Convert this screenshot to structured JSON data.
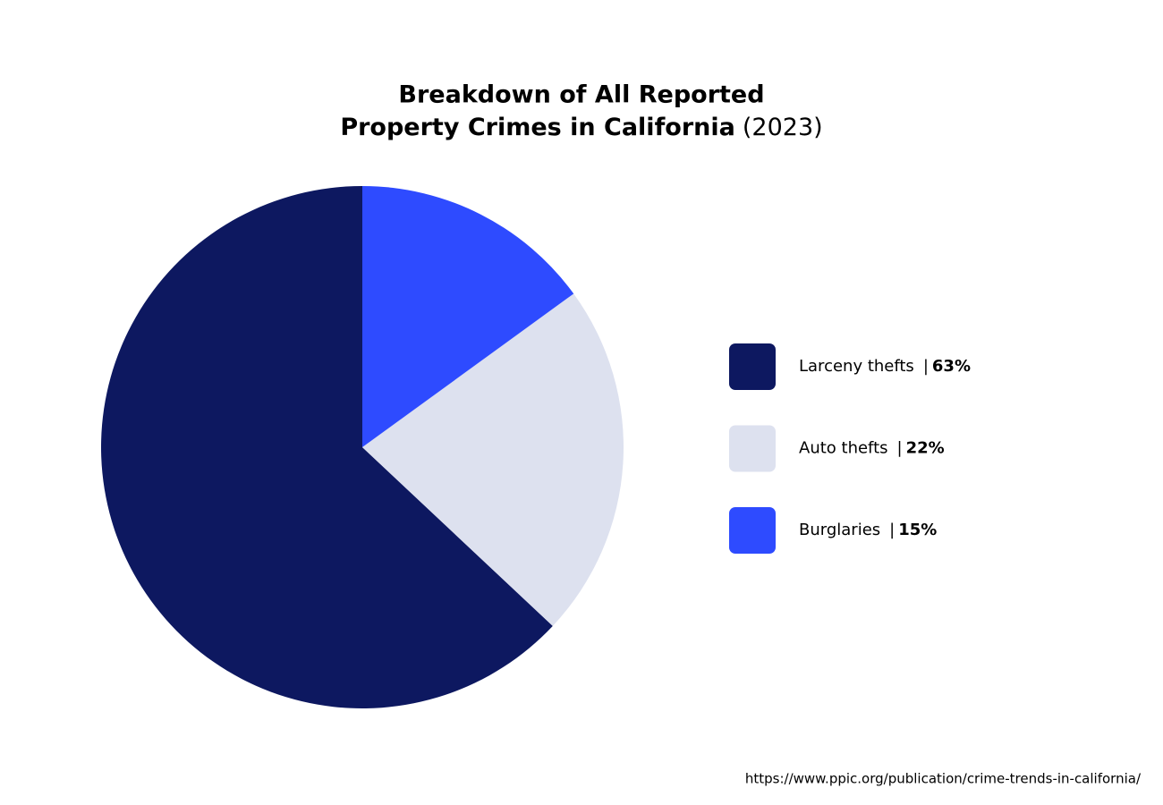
{
  "chart_data": {
    "type": "pie",
    "title": [
      "Breakdown of All Reported",
      "Property Crimes in California"
    ],
    "subtitle": "(2023)",
    "categories": [
      "Larceny thefts",
      "Auto thefts",
      "Burglaries"
    ],
    "values": [
      63,
      22,
      15
    ],
    "value_labels": [
      "63%",
      "22%",
      "15%"
    ],
    "colors": [
      "#0d1860",
      "#dde1ef",
      "#2e4bff"
    ],
    "legend_separator": "|",
    "legend": "right",
    "direction": "counterclockwise",
    "source": "https://www.ppic.org/publication/crime-trends-in-california/"
  }
}
